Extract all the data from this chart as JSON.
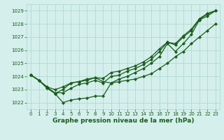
{
  "title": "Graphe pression niveau de la mer (hPa)",
  "background_color": "#d4efec",
  "grid_color": "#a8d8cc",
  "line_color": "#1a5c1a",
  "xlim": [
    -0.5,
    23.5
  ],
  "ylim": [
    1021.5,
    1029.5
  ],
  "yticks": [
    1022,
    1023,
    1024,
    1025,
    1026,
    1027,
    1028,
    1029
  ],
  "xticks": [
    0,
    1,
    2,
    3,
    4,
    5,
    6,
    7,
    8,
    9,
    10,
    11,
    12,
    13,
    14,
    15,
    16,
    17,
    18,
    19,
    20,
    21,
    22,
    23
  ],
  "series": [
    [
      1024.1,
      1023.7,
      1023.1,
      1022.7,
      1022.0,
      1022.2,
      1022.3,
      1022.35,
      1022.5,
      1022.5,
      1023.5,
      1023.8,
      1024.0,
      1024.3,
      1024.6,
      1025.0,
      1025.5,
      1026.5,
      1025.9,
      1026.5,
      1027.2,
      1028.3,
      1028.6,
      1029.0
    ],
    [
      1024.1,
      1023.7,
      1023.15,
      1022.75,
      1022.75,
      1023.1,
      1023.4,
      1023.5,
      1023.7,
      1023.5,
      1024.0,
      1024.1,
      1024.4,
      1024.6,
      1024.9,
      1025.3,
      1025.9,
      1026.6,
      1026.4,
      1027.0,
      1027.5,
      1028.35,
      1028.75,
      1029.0
    ],
    [
      1024.1,
      1023.7,
      1023.2,
      1022.7,
      1023.0,
      1023.5,
      1023.6,
      1023.8,
      1023.9,
      1023.85,
      1024.3,
      1024.4,
      1024.6,
      1024.8,
      1025.1,
      1025.5,
      1026.1,
      1026.6,
      1026.5,
      1027.1,
      1027.6,
      1028.4,
      1028.8,
      1029.0
    ],
    [
      1024.1,
      1023.7,
      1023.2,
      1023.0,
      1023.2,
      1023.5,
      1023.6,
      1023.7,
      1023.9,
      1023.6,
      1023.5,
      1023.6,
      1023.7,
      1023.8,
      1024.0,
      1024.2,
      1024.6,
      1025.0,
      1025.5,
      1025.9,
      1026.5,
      1027.0,
      1027.5,
      1028.0
    ]
  ],
  "figsize": [
    3.2,
    2.0
  ],
  "dpi": 100,
  "tick_labelsize": 5,
  "xlabel_fontsize": 6.5,
  "linewidth": 0.9,
  "markersize": 2.2
}
